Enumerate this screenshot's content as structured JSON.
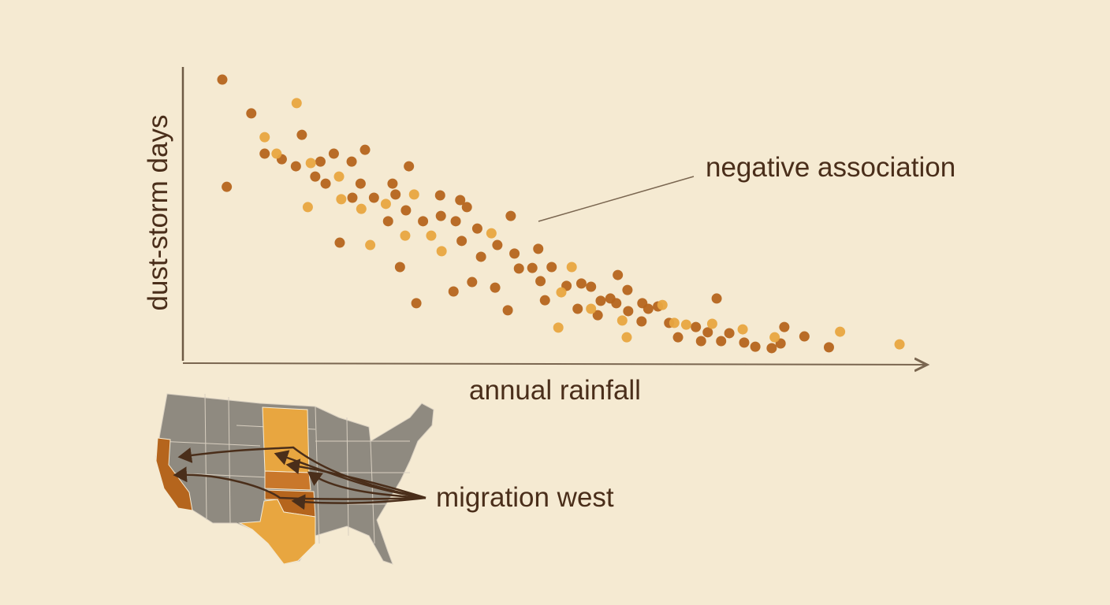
{
  "chart_data": {
    "type": "scatter",
    "x_label": "annual rainfall",
    "y_label": "dust-storm days",
    "annotation": "negative association",
    "map_label": "migration west",
    "xlim": [
      0,
      100
    ],
    "ylim": [
      0,
      100
    ],
    "series": [
      {
        "color": "#b5651d",
        "x": [
          5.3,
          5.9,
          9.2,
          16.0,
          11.0,
          13.3,
          15.2,
          18.5,
          20.3,
          22.7,
          24.5,
          30.4,
          17.8,
          19.2,
          23.9,
          28.2,
          22.8,
          25.7,
          28.6,
          30.0,
          32.3,
          34.6,
          34.7,
          37.3,
          38.2,
          36.7,
          39.6,
          37.5,
          40.1,
          42.3,
          44.1,
          44.6,
          45.2,
          47.8,
          47.0,
          48.1,
          49.6,
          51.6,
          53.6,
          54.9,
          58.5,
          59.8,
          56.2,
          57.5,
          58.3,
          53.1,
          55.8,
          61.8,
          62.6,
          59.9,
          61.7,
          63.9,
          65.4,
          69.0,
          71.8,
          66.6,
          69.7,
          70.6,
          72.4,
          73.5,
          75.5,
          77.0,
          79.2,
          80.4,
          80.9,
          83.6,
          86.9,
          29.2,
          31.4,
          36.4,
          38.9,
          42.0,
          43.7,
          48.7,
          21.1,
          27.6
        ],
        "values": [
          95.7,
          59.2,
          84.2,
          76.9,
          70.5,
          68.6,
          66.2,
          67.8,
          70.5,
          67.8,
          71.8,
          66.2,
          62.7,
          60.3,
          60.3,
          60.3,
          55.5,
          55.5,
          56.6,
          51.2,
          47.5,
          56.3,
          49.3,
          54.7,
          52.3,
          47.5,
          45.0,
          40.8,
          35.4,
          39.4,
          49.3,
          36.5,
          31.4,
          38.1,
          31.6,
          27.1,
          31.9,
          25.5,
          26.3,
          25.2,
          29.2,
          24.1,
          20.4,
          21.2,
          19.6,
          17.7,
          15.5,
          19.6,
          17.7,
          16.9,
          13.4,
          18.5,
          12.9,
          11.5,
          21.2,
          8.0,
          6.7,
          9.7,
          6.7,
          9.4,
          6.2,
          4.8,
          4.3,
          5.9,
          11.5,
          8.3,
          4.6,
          31.9,
          19.6,
          23.6,
          26.8,
          24.9,
          17.2,
          20.6,
          40.2,
          47.5
        ]
      },
      {
        "color": "#e8a640",
        "x": [
          15.3,
          11.0,
          12.6,
          17.2,
          21.0,
          16.8,
          21.3,
          24.0,
          27.3,
          31.1,
          29.9,
          33.4,
          34.8,
          41.5,
          52.3,
          50.9,
          54.9,
          50.5,
          59.1,
          59.7,
          64.5,
          66.1,
          67.7,
          71.2,
          75.3,
          79.6,
          88.4,
          96.4,
          25.2
        ],
        "values": [
          87.7,
          76.1,
          70.5,
          67.3,
          62.7,
          52.3,
          55.0,
          51.7,
          53.4,
          56.6,
          42.6,
          42.6,
          37.3,
          43.4,
          31.9,
          23.3,
          17.7,
          11.3,
          13.7,
          8.0,
          19.0,
          12.9,
          12.3,
          12.6,
          10.7,
          8.0,
          9.9,
          5.6,
          39.4
        ]
      }
    ]
  }
}
